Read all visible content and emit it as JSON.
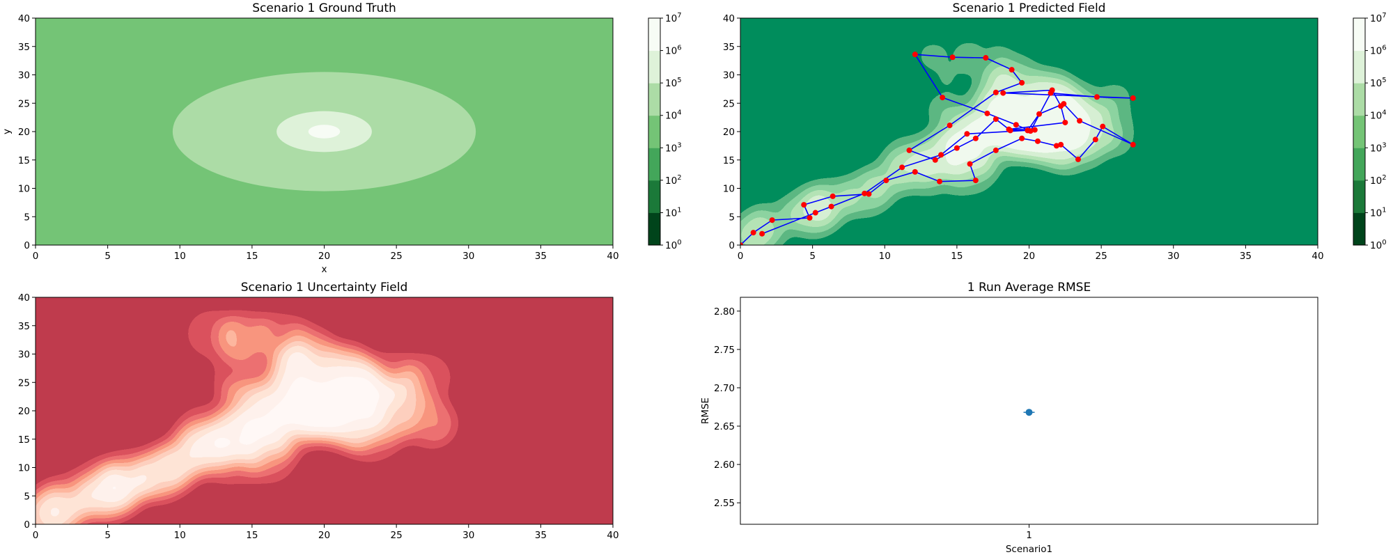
{
  "colors": {
    "greens": [
      "#00441b",
      "#1b7939",
      "#43a65a",
      "#74c476",
      "#acdca6",
      "#def2d9",
      "#f7fcf5"
    ],
    "reds": [
      "#860c14",
      "#b3161c",
      "#d6292a",
      "#f14d35",
      "#fb7758",
      "#fca084",
      "#fdc5ad",
      "#fee2d6",
      "#fff1ea"
    ],
    "path": "#0000ff",
    "points": "#ff0000",
    "errorbar": "#1f77b4"
  },
  "colorbar": {
    "ticks": [
      "10",
      "10",
      "10",
      "10",
      "10",
      "10",
      "10",
      "10"
    ],
    "exponents": [
      "0",
      "1",
      "2",
      "3",
      "4",
      "5",
      "6",
      "7"
    ]
  },
  "chart_data": [
    {
      "type": "heatmap",
      "title": "Scenario 1 Ground Truth",
      "xlabel": "x",
      "ylabel": "y",
      "xlim": [
        0,
        40
      ],
      "ylim": [
        0,
        40
      ],
      "xticks": [
        "0",
        "5",
        "10",
        "15",
        "20",
        "25",
        "30",
        "35",
        "40"
      ],
      "yticks": [
        "0",
        "5",
        "10",
        "15",
        "20",
        "25",
        "30",
        "35",
        "40"
      ],
      "colormap": "Greens_r",
      "color_scale": "log",
      "colorbar_range": [
        "1e0",
        "1e7"
      ],
      "field": {
        "background_level": 3,
        "center": [
          20,
          20
        ],
        "contours": [
          {
            "level": 4,
            "rx": 10.5,
            "ry": 10.5
          },
          {
            "level": 5,
            "rx": 3.3,
            "ry": 3.6
          },
          {
            "level": 6,
            "rx": 1.1,
            "ry": 1.2
          }
        ]
      }
    },
    {
      "type": "heatmap",
      "title": "Scenario 1 Predicted Field",
      "xlim": [
        0,
        40
      ],
      "ylim": [
        0,
        40
      ],
      "xticks": [
        "0",
        "5",
        "10",
        "15",
        "20",
        "25",
        "30",
        "35",
        "40"
      ],
      "yticks": [
        "0",
        "5",
        "10",
        "15",
        "20",
        "25",
        "30",
        "35",
        "40"
      ],
      "colormap": "Greens_r",
      "color_scale": "log",
      "colorbar_range": [
        "1e0",
        "1e7"
      ],
      "sample_path": [
        [
          0,
          0
        ],
        [
          0.9,
          2.2
        ],
        [
          2.2,
          4.4
        ],
        [
          4.8,
          4.8
        ],
        [
          4.4,
          7.1
        ],
        [
          6.4,
          8.6
        ],
        [
          8.9,
          9.0
        ],
        [
          10.1,
          11.4
        ],
        [
          12.1,
          12.9
        ],
        [
          13.8,
          11.2
        ],
        [
          16.3,
          11.4
        ],
        [
          15.9,
          14.3
        ],
        [
          17.7,
          16.7
        ],
        [
          19.5,
          18.8
        ],
        [
          20.6,
          18.3
        ],
        [
          21.9,
          17.5
        ],
        [
          22.2,
          17.7
        ],
        [
          23.4,
          15.1
        ],
        [
          24.6,
          18.6
        ],
        [
          25.1,
          20.9
        ],
        [
          27.2,
          17.7
        ],
        [
          23.5,
          21.9
        ],
        [
          22.4,
          24.9
        ],
        [
          20.7,
          23.1
        ],
        [
          19.9,
          20.2
        ],
        [
          18.7,
          20.2
        ],
        [
          17.7,
          22.2
        ],
        [
          16.3,
          18.8
        ],
        [
          15.0,
          17.1
        ],
        [
          13.5,
          15.0
        ],
        [
          11.7,
          16.7
        ],
        [
          14.5,
          21.1
        ],
        [
          17.7,
          26.9
        ],
        [
          19.5,
          28.6
        ],
        [
          18.8,
          30.9
        ],
        [
          17.0,
          33.0
        ],
        [
          14.7,
          33.1
        ],
        [
          12.1,
          33.6
        ],
        [
          14.0,
          26.0
        ],
        [
          17.1,
          23.2
        ],
        [
          19.1,
          21.2
        ],
        [
          20.1,
          20.1
        ],
        [
          21.5,
          26.8
        ],
        [
          24.7,
          26.1
        ],
        [
          27.2,
          25.9
        ],
        [
          18.2,
          26.8
        ],
        [
          21.6,
          27.3
        ],
        [
          22.2,
          24.5
        ],
        [
          22.5,
          21.6
        ],
        [
          18.6,
          20.4
        ],
        [
          20.4,
          20.3
        ],
        [
          15.7,
          19.6
        ],
        [
          13.9,
          15.9
        ],
        [
          11.2,
          13.7
        ],
        [
          8.6,
          9.1
        ],
        [
          6.3,
          6.8
        ],
        [
          5.2,
          5.7
        ],
        [
          1.5,
          2.0
        ]
      ]
    },
    {
      "type": "heatmap",
      "title": "Scenario 1 Uncertainty Field",
      "xlim": [
        0,
        40
      ],
      "ylim": [
        0,
        40
      ],
      "xticks": [
        "0",
        "5",
        "10",
        "15",
        "20",
        "25",
        "30",
        "35",
        "40"
      ],
      "yticks": [
        "0",
        "5",
        "10",
        "15",
        "20",
        "25",
        "30",
        "35",
        "40"
      ],
      "colormap": "Reds_r"
    },
    {
      "type": "scatter",
      "title": "1 Run Average RMSE",
      "xlabel": "Scenario1",
      "ylabel": "RMSE",
      "categories": [
        "1"
      ],
      "series": [
        {
          "values": [
            2.668
          ],
          "error": [
            0.0
          ]
        }
      ],
      "ylim": [
        2.522,
        2.818
      ],
      "yticks": [
        "2.55",
        "2.60",
        "2.65",
        "2.70",
        "2.75",
        "2.80"
      ]
    }
  ]
}
